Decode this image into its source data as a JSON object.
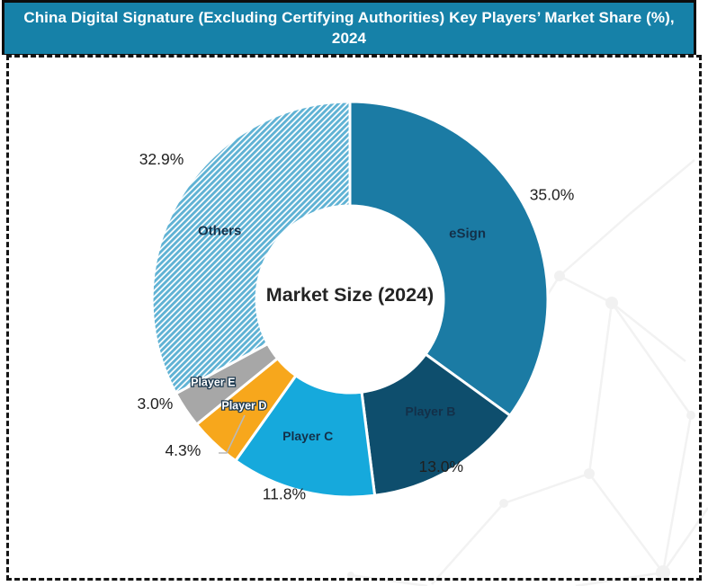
{
  "header": {
    "title": "China Digital Signature (Excluding Certifying Authorities) Key Players’ Market Share (%), 2024",
    "bg_color": "#1681A8",
    "text_color": "#FFFFFF",
    "border_color": "#0D0D0D"
  },
  "frame": {
    "border_style": "dashed",
    "border_color": "#141414"
  },
  "chart_data": {
    "type": "pie",
    "variant": "donut",
    "title": "China Digital Signature (Excluding Certifying Authorities) Key Players’ Market Share (%), 2024",
    "center_label": "Market Size (2024)",
    "unit": "%",
    "start_angle_deg": 0,
    "direction": "clockwise",
    "legend_position": "none",
    "categories": [
      "eSign",
      "Player B",
      "Player C",
      "Player D",
      "Player E",
      "Others"
    ],
    "values": [
      35.0,
      13.0,
      11.8,
      4.3,
      3.0,
      32.9
    ],
    "slices": [
      {
        "label": "eSign",
        "value": 35.0,
        "display": "35.0%",
        "color": "#1B7BA4",
        "text_style": "dark"
      },
      {
        "label": "Player B",
        "value": 13.0,
        "display": "13.0%",
        "color": "#0E4E6D",
        "text_style": "dark"
      },
      {
        "label": "Player C",
        "value": 11.8,
        "display": "11.8%",
        "color": "#16A9DC",
        "text_style": "dark"
      },
      {
        "label": "Player D",
        "value": 4.3,
        "display": "4.3%",
        "color": "#F7A71C",
        "text_style": "outlined",
        "leader_line": true
      },
      {
        "label": "Player E",
        "value": 3.0,
        "display": "3.0%",
        "color": "#A7A7A7",
        "text_style": "outlined"
      },
      {
        "label": "Others",
        "value": 32.9,
        "display": "32.9%",
        "color": "#5FB2D4",
        "pattern": "diagonal-hatch",
        "text_style": "dark"
      }
    ],
    "slice_gap_color": "#FFFFFF",
    "value_label_color": "#1F1F1F",
    "name_label_color": "#133049",
    "center_label_color": "#242424"
  },
  "watermark": {
    "description": "faint plexus network pattern",
    "color": "#EDEDED"
  }
}
